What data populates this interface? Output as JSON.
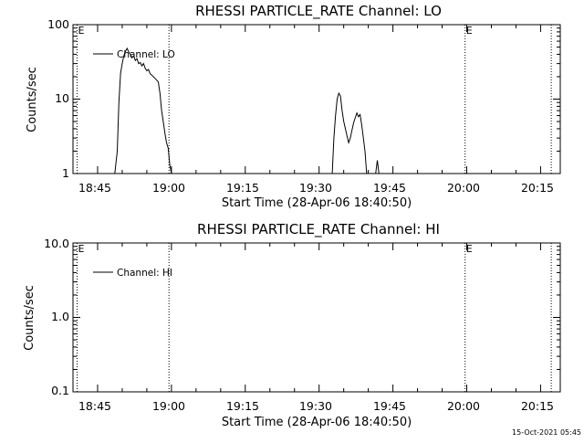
{
  "footer": {
    "timestamp": "15-Oct-2021 05:45"
  },
  "chart_data": [
    {
      "type": "line",
      "title": "RHESSI PARTICLE_RATE Channel: LO",
      "xlabel": "Start Time (28-Apr-06 18:40:50)",
      "ylabel": "Counts/sec",
      "yscale": "log",
      "xlim_minutes_after_1840": [
        0,
        99
      ],
      "ylim": [
        1,
        100
      ],
      "x_ticks": [
        "18:45",
        "19:00",
        "19:15",
        "19:30",
        "19:45",
        "20:00",
        "20:15"
      ],
      "y_ticks": [
        "1",
        "10",
        "100"
      ],
      "grid": false,
      "legend": {
        "position": "top-left",
        "entries": [
          "Channel: LO"
        ]
      },
      "markers": [
        {
          "label": "E",
          "time": "18:40:50"
        },
        {
          "label": "",
          "time": "18:59:30"
        },
        {
          "label": "E",
          "time": "19:59:40"
        },
        {
          "label": "",
          "time": "20:17:10"
        }
      ],
      "series": [
        {
          "name": "Channel: LO",
          "points": [
            [
              "18:48:30",
              1
            ],
            [
              "18:49:00",
              2
            ],
            [
              "18:49:20",
              9
            ],
            [
              "18:49:40",
              22
            ],
            [
              "18:50:00",
              30
            ],
            [
              "18:50:20",
              38
            ],
            [
              "18:50:40",
              44
            ],
            [
              "18:51:00",
              48
            ],
            [
              "18:51:20",
              43
            ],
            [
              "18:51:40",
              40
            ],
            [
              "18:52:00",
              36
            ],
            [
              "18:52:20",
              38
            ],
            [
              "18:52:40",
              33
            ],
            [
              "18:53:00",
              35
            ],
            [
              "18:53:20",
              30
            ],
            [
              "18:53:40",
              31
            ],
            [
              "18:54:00",
              28
            ],
            [
              "18:54:20",
              30
            ],
            [
              "18:54:40",
              26
            ],
            [
              "18:55:00",
              24
            ],
            [
              "18:55:20",
              25
            ],
            [
              "18:55:40",
              22
            ],
            [
              "18:56:00",
              21
            ],
            [
              "18:56:20",
              20
            ],
            [
              "18:56:40",
              19
            ],
            [
              "18:57:00",
              18
            ],
            [
              "18:57:20",
              17
            ],
            [
              "18:57:40",
              12
            ],
            [
              "18:58:00",
              7
            ],
            [
              "18:58:20",
              5
            ],
            [
              "18:58:40",
              3.5
            ],
            [
              "18:59:00",
              2.6
            ],
            [
              "18:59:20",
              2.2
            ],
            [
              "18:59:40",
              1.3
            ],
            [
              "19:00:00",
              1
            ],
            null,
            [
              "19:32:40",
              1
            ],
            [
              "19:33:00",
              3
            ],
            [
              "19:33:20",
              6
            ],
            [
              "19:33:40",
              10
            ],
            [
              "19:34:00",
              12
            ],
            [
              "19:34:20",
              11
            ],
            [
              "19:34:40",
              7
            ],
            [
              "19:35:00",
              5
            ],
            [
              "19:35:20",
              4
            ],
            [
              "19:35:40",
              3.2
            ],
            [
              "19:36:00",
              2.6
            ],
            [
              "19:36:20",
              3
            ],
            [
              "19:36:40",
              3.8
            ],
            [
              "19:37:00",
              4.8
            ],
            [
              "19:37:20",
              5.6
            ],
            [
              "19:37:40",
              6.5
            ],
            [
              "19:38:00",
              5.8
            ],
            [
              "19:38:20",
              6.2
            ],
            [
              "19:38:40",
              4.5
            ],
            [
              "19:39:00",
              3
            ],
            [
              "19:39:20",
              2
            ],
            [
              "19:39:40",
              1
            ],
            null,
            [
              "19:41:30",
              1
            ],
            [
              "19:41:50",
              1.5
            ],
            [
              "19:42:10",
              1
            ]
          ]
        }
      ]
    },
    {
      "type": "line",
      "title": "RHESSI PARTICLE_RATE Channel: HI",
      "xlabel": "Start Time (28-Apr-06 18:40:50)",
      "ylabel": "Counts/sec",
      "yscale": "log",
      "xlim_minutes_after_1840": [
        0,
        99
      ],
      "ylim": [
        0.1,
        10
      ],
      "x_ticks": [
        "18:45",
        "19:00",
        "19:15",
        "19:30",
        "19:45",
        "20:00",
        "20:15"
      ],
      "y_ticks": [
        "0.1",
        "1.0",
        "10.0"
      ],
      "grid": false,
      "legend": {
        "position": "top-left",
        "entries": [
          "Channel: HI"
        ]
      },
      "markers": [
        {
          "label": "E",
          "time": "18:40:50"
        },
        {
          "label": "",
          "time": "18:59:30"
        },
        {
          "label": "E",
          "time": "19:59:40"
        },
        {
          "label": "",
          "time": "20:17:10"
        }
      ],
      "series": [
        {
          "name": "Channel: HI",
          "points": []
        }
      ]
    }
  ]
}
